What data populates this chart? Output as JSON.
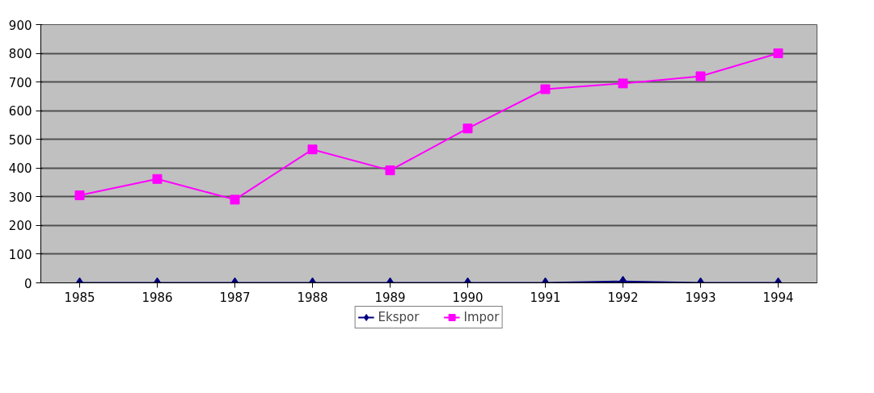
{
  "chart_data": {
    "type": "line",
    "categories": [
      "1985",
      "1986",
      "1987",
      "1988",
      "1989",
      "1990",
      "1991",
      "1992",
      "1993",
      "1994"
    ],
    "series": [
      {
        "name": "Ekspor",
        "color": "#000080",
        "marker": "diamond",
        "values": [
          0,
          0,
          0,
          0,
          0,
          0,
          0,
          5,
          0,
          0
        ]
      },
      {
        "name": "Impor",
        "color": "#ff00ff",
        "marker": "square",
        "values": [
          305,
          362,
          290,
          465,
          392,
          538,
          675,
          695,
          720,
          800
        ]
      }
    ],
    "ylim": [
      0,
      900
    ],
    "yticks": [
      0,
      100,
      200,
      300,
      400,
      500,
      600,
      700,
      800,
      900
    ],
    "grid": "y",
    "legend": "bottom"
  }
}
